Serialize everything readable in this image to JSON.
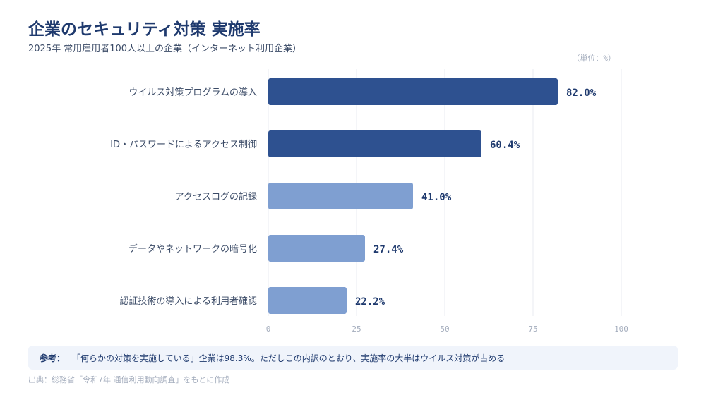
{
  "title": "企業のセキュリティ対策 実施率",
  "subtitle": "2025年 常用雇用者100人以上の企業（インターネット利用企業）",
  "unit_label": "（単位：%）",
  "note": {
    "label": "参考：",
    "text": "「何らかの対策を実施している」企業は98.3%。ただしこの内訳のとおり、実施率の大半はウイルス対策が占める"
  },
  "source": "出典：総務省「令和7年 通信利用動向調査」をもとに作成",
  "colors": {
    "dark_bar": "#2e5190",
    "light_bar": "#7f9fd1",
    "value_label": "#1f3a6e",
    "category_label": "#3a4a66",
    "grid": "#e8ebf0",
    "tick": "#a4adbd"
  },
  "chart_data": {
    "type": "bar",
    "orientation": "horizontal",
    "categories": [
      "ウイルス対策プログラムの導入",
      "ID・パスワードによるアクセス制御",
      "アクセスログの記録",
      "データやネットワークの暗号化",
      "認証技術の導入による利用者確認"
    ],
    "values": [
      82.0,
      60.4,
      41.0,
      27.4,
      22.2
    ],
    "value_labels": [
      "82.0%",
      "60.4%",
      "41.0%",
      "27.4%",
      "22.2%"
    ],
    "highlight": [
      true,
      true,
      false,
      false,
      false
    ],
    "xlim": [
      0,
      100
    ],
    "xticks": [
      0,
      25,
      50,
      75,
      100
    ],
    "grid": true,
    "legend": "none"
  }
}
